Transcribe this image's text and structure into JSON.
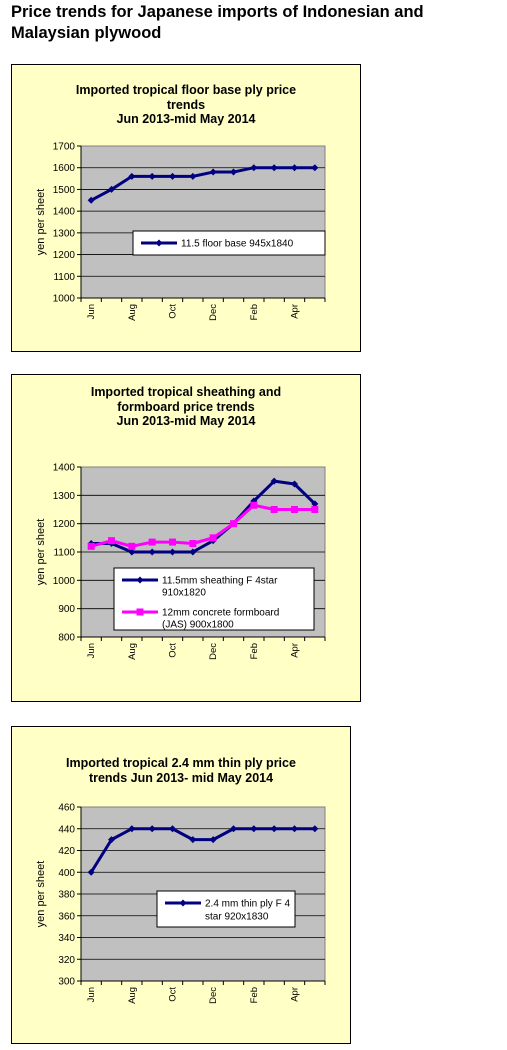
{
  "page": {
    "title": "Price trends for Japanese imports of Indonesian and Malaysian plywood"
  },
  "chart_data": [
    {
      "type": "line",
      "title_lines": [
        "Imported tropical floor base ply price",
        "trends",
        "Jun 2013-mid May 2014"
      ],
      "xlabel": "",
      "ylabel": "yen per sheet",
      "ylim": [
        1000,
        1700
      ],
      "yticks": [
        1000,
        1100,
        1200,
        1300,
        1400,
        1500,
        1600,
        1700
      ],
      "xtick_labels": [
        "Jun",
        "Aug",
        "Oct",
        "Dec",
        "Feb",
        "Apr"
      ],
      "grid": "horizontal",
      "legend": "inside-right",
      "x": [
        "Jun",
        "Jul",
        "Aug",
        "Sep",
        "Oct",
        "Nov",
        "Dec",
        "Jan",
        "Feb",
        "Mar",
        "Apr",
        "May"
      ],
      "series": [
        {
          "name": "11.5 floor base 945x1840",
          "color": "#000080",
          "marker": "diamond",
          "values": [
            1450,
            1500,
            1560,
            1560,
            1560,
            1560,
            1580,
            1580,
            1600,
            1600,
            1600,
            1600
          ]
        }
      ]
    },
    {
      "type": "line",
      "title_lines": [
        "Imported tropical sheathing and",
        "formboard price trends",
        "Jun 2013-mid May 2014"
      ],
      "xlabel": "",
      "ylabel": "yen per sheet",
      "ylim": [
        800,
        1400
      ],
      "yticks": [
        800,
        900,
        1000,
        1100,
        1200,
        1300,
        1400
      ],
      "xtick_labels": [
        "Jun",
        "Aug",
        "Oct",
        "Dec",
        "Feb",
        "Apr"
      ],
      "grid": "horizontal",
      "legend": "lower-center",
      "x": [
        "Jun",
        "Jul",
        "Aug",
        "Sep",
        "Oct",
        "Nov",
        "Dec",
        "Jan",
        "Feb",
        "Mar",
        "Apr",
        "May"
      ],
      "series": [
        {
          "name_lines": [
            "11.5mm sheathing F 4star",
            "910x1820"
          ],
          "color": "#000080",
          "marker": "diamond",
          "values": [
            1130,
            1130,
            1100,
            1100,
            1100,
            1100,
            1140,
            1200,
            1280,
            1350,
            1340,
            1270
          ]
        },
        {
          "name_lines": [
            "12mm concrete formboard",
            "(JAS) 900x1800"
          ],
          "color": "#ff00ff",
          "marker": "square",
          "values": [
            1120,
            1140,
            1120,
            1135,
            1135,
            1130,
            1150,
            1200,
            1265,
            1250,
            1250,
            1250
          ]
        }
      ]
    },
    {
      "type": "line",
      "title_lines": [
        "Imported tropical 2.4 mm thin ply price",
        "trends Jun 2013- mid May 2014"
      ],
      "xlabel": "",
      "ylabel": "yen per sheet",
      "ylim": [
        300,
        460
      ],
      "yticks": [
        300,
        320,
        340,
        360,
        380,
        400,
        420,
        440,
        460
      ],
      "xtick_labels": [
        "Jun",
        "Aug",
        "Oct",
        "Dec",
        "Feb",
        "Apr"
      ],
      "grid": "horizontal",
      "legend": "inside-right",
      "x": [
        "Jun",
        "Jul",
        "Aug",
        "Sep",
        "Oct",
        "Nov",
        "Dec",
        "Jan",
        "Feb",
        "Mar",
        "Apr",
        "May"
      ],
      "series": [
        {
          "name_lines": [
            "2.4 mm thin ply F 4",
            "star 920x1830"
          ],
          "color": "#000080",
          "marker": "diamond",
          "values": [
            400,
            430,
            440,
            440,
            440,
            430,
            430,
            440,
            440,
            440,
            440,
            440
          ]
        }
      ]
    }
  ]
}
